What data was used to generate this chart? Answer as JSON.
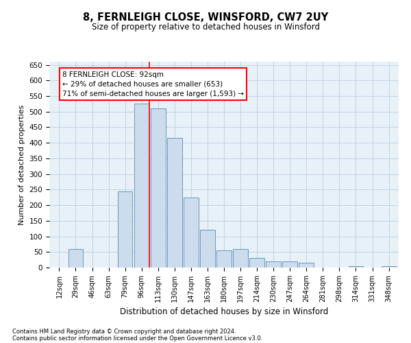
{
  "title": "8, FERNLEIGH CLOSE, WINSFORD, CW7 2UY",
  "subtitle": "Size of property relative to detached houses in Winsford",
  "xlabel": "Distribution of detached houses by size in Winsford",
  "ylabel": "Number of detached properties",
  "bar_color": "#ccdcec",
  "bar_edge_color": "#6699bb",
  "categories": [
    "12sqm",
    "29sqm",
    "46sqm",
    "63sqm",
    "79sqm",
    "96sqm",
    "113sqm",
    "130sqm",
    "147sqm",
    "163sqm",
    "180sqm",
    "197sqm",
    "214sqm",
    "230sqm",
    "247sqm",
    "264sqm",
    "281sqm",
    "298sqm",
    "314sqm",
    "331sqm",
    "348sqm"
  ],
  "values": [
    0,
    60,
    0,
    0,
    245,
    525,
    510,
    415,
    225,
    120,
    55,
    60,
    30,
    20,
    20,
    15,
    0,
    0,
    5,
    0,
    5
  ],
  "ylim": [
    0,
    660
  ],
  "yticks": [
    0,
    50,
    100,
    150,
    200,
    250,
    300,
    350,
    400,
    450,
    500,
    550,
    600,
    650
  ],
  "property_line_x": 5.45,
  "annotation_text": "8 FERNLEIGH CLOSE: 92sqm\n← 29% of detached houses are smaller (653)\n71% of semi-detached houses are larger (1,593) →",
  "grid_color": "#b8cfe0",
  "background_color": "#e8f0f8",
  "footer_line1": "Contains HM Land Registry data © Crown copyright and database right 2024.",
  "footer_line2": "Contains public sector information licensed under the Open Government Licence v3.0."
}
